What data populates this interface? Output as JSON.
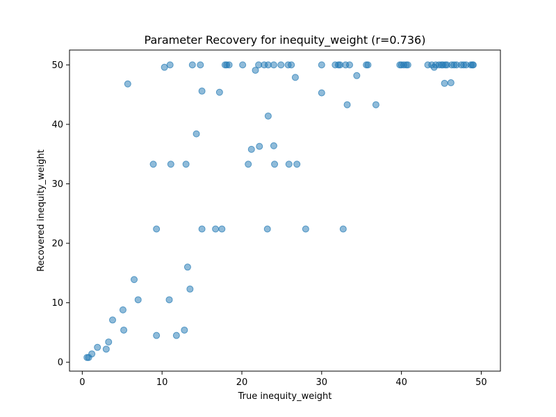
{
  "chart_data": {
    "type": "scatter",
    "title": "Parameter Recovery for inequity_weight (r=0.736)",
    "xlabel": "True inequity_weight",
    "ylabel": "Recovered inequity_weight",
    "xlim": [
      -1.6,
      52.4
    ],
    "ylim": [
      -1.5,
      52.5
    ],
    "xticks": [
      0,
      10,
      20,
      30,
      40,
      50
    ],
    "yticks": [
      0,
      10,
      20,
      30,
      40,
      50
    ],
    "xtick_labels": [
      "0",
      "10",
      "20",
      "30",
      "40",
      "50"
    ],
    "ytick_labels": [
      "0",
      "10",
      "20",
      "30",
      "40",
      "50"
    ],
    "grid": false,
    "marker_color": "#1f77b4",
    "marker_alpha": 0.5,
    "x": [
      0.6,
      0.8,
      1.2,
      1.9,
      3.0,
      3.3,
      3.8,
      5.1,
      5.2,
      6.5,
      7.0,
      9.3,
      10.9,
      11.8,
      12.8,
      13.2,
      13.5,
      8.9,
      9.3,
      11.1,
      13.0,
      15.0,
      16.7,
      17.5,
      23.2,
      28.0,
      32.7,
      14.3,
      20.8,
      21.2,
      22.2,
      23.3,
      24.0,
      24.1,
      25.9,
      26.9,
      5.7,
      10.3,
      11.0,
      13.8,
      14.8,
      15.0,
      17.2,
      17.9,
      18.1,
      18.4,
      20.1,
      21.7,
      22.1,
      22.8,
      23.3,
      24.0,
      24.9,
      25.8,
      26.2,
      26.7,
      30.0,
      30.0,
      31.7,
      32.1,
      32.3,
      33.0,
      33.2,
      33.5,
      34.4,
      35.6,
      35.8,
      36.8,
      39.8,
      40.0,
      40.3,
      40.6,
      40.8,
      43.3,
      43.8,
      44.1,
      44.3,
      44.7,
      45.0,
      45.2,
      45.4,
      45.5,
      45.7,
      46.2,
      46.3,
      46.6,
      46.9,
      47.5,
      47.8,
      48.1,
      48.7,
      48.9,
      49.0
    ],
    "y": [
      0.8,
      0.8,
      1.4,
      2.5,
      2.2,
      3.4,
      7.1,
      8.8,
      5.4,
      13.9,
      10.5,
      4.5,
      10.5,
      4.5,
      5.4,
      16.0,
      12.3,
      33.3,
      22.4,
      33.3,
      33.3,
      22.4,
      22.4,
      22.4,
      22.4,
      22.4,
      22.4,
      38.4,
      33.3,
      35.8,
      36.3,
      41.4,
      36.4,
      33.3,
      33.3,
      33.3,
      46.8,
      49.6,
      50.0,
      50.0,
      50.0,
      45.6,
      45.4,
      50.0,
      50.0,
      50.0,
      50.0,
      49.1,
      50.0,
      50.0,
      50.0,
      50.0,
      50.0,
      50.0,
      50.0,
      47.9,
      50.0,
      45.3,
      50.0,
      50.0,
      50.0,
      50.0,
      43.3,
      50.0,
      48.2,
      50.0,
      50.0,
      43.3,
      50.0,
      50.0,
      50.0,
      50.0,
      50.0,
      50.0,
      50.0,
      49.6,
      50.0,
      50.0,
      50.0,
      50.0,
      46.9,
      50.0,
      50.0,
      47.0,
      50.0,
      50.0,
      50.0,
      50.0,
      50.0,
      50.0,
      50.0,
      50.0,
      50.0
    ]
  }
}
